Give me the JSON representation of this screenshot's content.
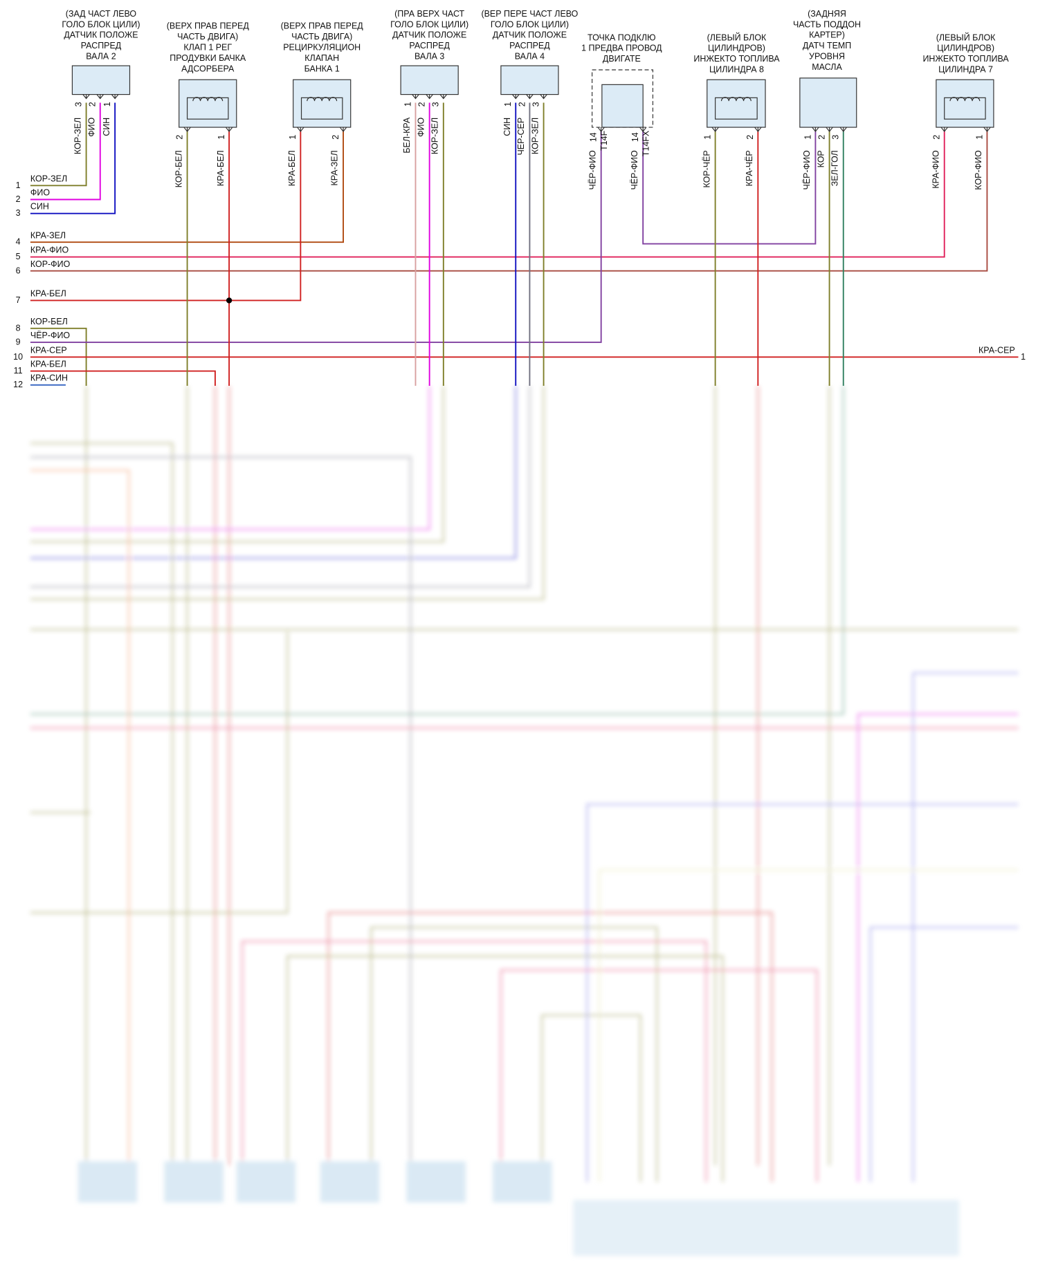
{
  "components": [
    {
      "title": [
        "(ЗАД ЧАСТ ЛЕВО",
        "ГОЛО БЛОК ЦИЛИ)",
        "ДАТЧИК ПОЛОЖЕ",
        "РАСПРЕД",
        "ВАЛА 2"
      ],
      "pins": [
        {
          "number": "3",
          "wire": "КОР-ЗЕЛ"
        },
        {
          "number": "2",
          "wire": "ФИО"
        },
        {
          "number": "1",
          "wire": "СИН"
        }
      ]
    },
    {
      "title": [
        "(ВЕРХ ПРАВ ПЕРЕД",
        "ЧАСТЬ ДВИГА)",
        "КЛАП 1 РЕГ",
        "ПРОДУВКИ БАЧКА",
        "АДСОРБЕРА"
      ],
      "pins": [
        {
          "number": "2",
          "wire": "КОР-БЕЛ"
        },
        {
          "number": "1",
          "wire": "КРА-БЕЛ"
        }
      ]
    },
    {
      "title": [
        "(ВЕРХ ПРАВ ПЕРЕД",
        "ЧАСТЬ ДВИГА)",
        "РЕЦИРКУЛЯЦИОН",
        "КЛАПАН",
        "БАНКА 1"
      ],
      "pins": [
        {
          "number": "1",
          "wire": "КРА-БЕЛ"
        },
        {
          "number": "2",
          "wire": "КРА-ЗЕЛ"
        }
      ]
    },
    {
      "title": [
        "(ПРА ВЕРХ ЧАСТ",
        "ГОЛО БЛОК ЦИЛИ)",
        "ДАТЧИК ПОЛОЖЕ",
        "РАСПРЕД",
        "ВАЛА 3"
      ],
      "pins": [
        {
          "number": "1",
          "wire": "БЕЛ-КРА"
        },
        {
          "number": "2",
          "wire": "ФИО"
        },
        {
          "number": "3",
          "wire": "КОР-ЗЕЛ"
        }
      ]
    },
    {
      "title": [
        "(ВЕР ПЕРЕ ЧАСТ ЛЕВО",
        "ГОЛО БЛОК ЦИЛИ)",
        "ДАТЧИК ПОЛОЖЕ",
        "РАСПРЕД",
        "ВАЛА 4"
      ],
      "pins": [
        {
          "number": "1",
          "wire": "СИН"
        },
        {
          "number": "2",
          "wire": "ЧЕР-СЕР"
        },
        {
          "number": "3",
          "wire": "КОР-ЗЕЛ"
        }
      ]
    },
    {
      "title": [
        "ТОЧКА ПОДКЛЮ",
        "1 ПРЕДВА ПРОВОД",
        "ДВИГАТЕ"
      ],
      "pins": [
        {
          "number": "14",
          "terminal": "T14F",
          "wire": "ЧЁР-ФИО"
        },
        {
          "number": "14",
          "terminal": "T14FX",
          "wire": "ЧЁР-ФИО"
        }
      ]
    },
    {
      "title": [
        "(ЛЕВЫЙ БЛОК",
        "ЦИЛИНДРОВ)",
        "ИНЖЕКТО ТОПЛИВА",
        "ЦИЛИНДРА 8"
      ],
      "pins": [
        {
          "number": "1",
          "wire": "КОР-ЧЁР"
        },
        {
          "number": "2",
          "wire": "КРА-ЧЁР"
        }
      ]
    },
    {
      "title": [
        "(ЗАДНЯЯ",
        "ЧАСТЬ ПОДДОН",
        "КАРТЕР)",
        "ДАТЧ ТЕМП",
        "УРОВНЯ",
        "МАСЛА"
      ],
      "pins": [
        {
          "number": "1",
          "wire": "ЧЁР-ФИО"
        },
        {
          "number": "2",
          "wire": "КОР"
        },
        {
          "number": "3",
          "wire": "ЗЕЛ-ГОЛ"
        }
      ]
    },
    {
      "title": [
        "(ЛЕВЫЙ БЛОК",
        "ЦИЛИНДРОВ)",
        "ИНЖЕКТО ТОПЛИВА",
        "ЦИЛИНДРА 7"
      ],
      "pins": [
        {
          "number": "2",
          "wire": "КРА-ФИО"
        },
        {
          "number": "1",
          "wire": "КОР-ФИО"
        }
      ]
    }
  ],
  "connector_left": [
    {
      "pin": "1",
      "wire": "КОР-ЗЕЛ"
    },
    {
      "pin": "2",
      "wire": "ФИО"
    },
    {
      "pin": "3",
      "wire": "СИН"
    },
    {
      "pin": "4",
      "wire": "КРА-ЗЕЛ"
    },
    {
      "pin": "5",
      "wire": "КРА-ФИО"
    },
    {
      "pin": "6",
      "wire": "КОР-ФИО"
    },
    {
      "pin": "7",
      "wire": "КРА-БЕЛ"
    },
    {
      "pin": "8",
      "wire": "КОР-БЕЛ"
    },
    {
      "pin": "9",
      "wire": "ЧЁР-ФИО"
    },
    {
      "pin": "10",
      "wire": "КРА-СЕР"
    },
    {
      "pin": "11",
      "wire": "КРА-БЕЛ"
    },
    {
      "pin": "12",
      "wire": "КРА-СИН"
    }
  ],
  "connector_right": [
    {
      "pin": "1",
      "wire": "КРА-СЕР"
    }
  ]
}
